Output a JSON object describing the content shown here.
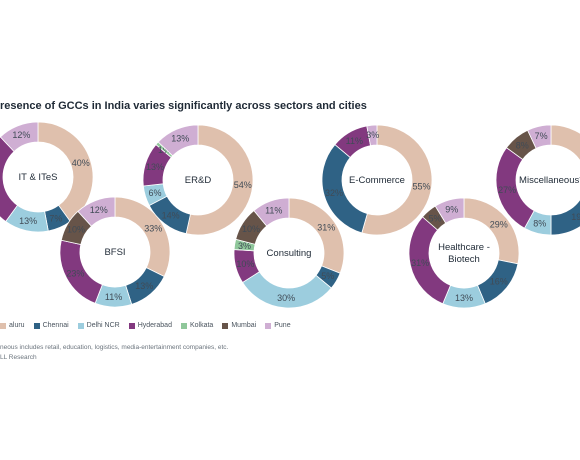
{
  "title": "resence of GCCs in India varies significantly across sectors and cities",
  "colors": {
    "Bengaluru": "#dfc0ad",
    "Chennai": "#2f6285",
    "Delhi NCR": "#9ccdde",
    "Hyderabad": "#82397f",
    "Kolkata": "#8fc79a",
    "Mumbai": "#675449",
    "Pune": "#cfaed3"
  },
  "legend": {
    "items": [
      {
        "label": "aluru",
        "key": "Bengaluru"
      },
      {
        "label": "Chennai",
        "key": "Chennai"
      },
      {
        "label": "Delhi NCR",
        "key": "Delhi NCR"
      },
      {
        "label": "Hyderabad",
        "key": "Hyderabad"
      },
      {
        "label": "Kolkata",
        "key": "Kolkata"
      },
      {
        "label": "Mumbai",
        "key": "Mumbai"
      },
      {
        "label": "Pune",
        "key": "Pune"
      }
    ]
  },
  "footnote": "neous includes retail, education, logistics, media-entertainment companies, etc.",
  "source": "LL Research",
  "chart_data": [
    {
      "type": "pie",
      "title": "IT & ITeS",
      "slices": [
        {
          "city": "Bengaluru",
          "value": 40,
          "label": "40%"
        },
        {
          "city": "Chennai",
          "value": 7,
          "label": "7%"
        },
        {
          "city": "Delhi NCR",
          "value": 13,
          "label": "13%"
        },
        {
          "city": "Hyderabad",
          "value": 28,
          "label": ""
        },
        {
          "city": "Pune",
          "value": 12,
          "label": "12%"
        }
      ]
    },
    {
      "type": "pie",
      "title": "BFSI",
      "slices": [
        {
          "city": "Bengaluru",
          "value": 33,
          "label": "33%"
        },
        {
          "city": "Chennai",
          "value": 13,
          "label": "13%"
        },
        {
          "city": "Delhi NCR",
          "value": 11,
          "label": "11%"
        },
        {
          "city": "Hyderabad",
          "value": 23,
          "label": "23%"
        },
        {
          "city": "Mumbai",
          "value": 10,
          "label": "10%"
        },
        {
          "city": "Pune",
          "value": 12,
          "label": "12%"
        }
      ]
    },
    {
      "type": "pie",
      "title": "ER&D",
      "slices": [
        {
          "city": "Bengaluru",
          "value": 54,
          "label": "54%"
        },
        {
          "city": "Chennai",
          "value": 14,
          "label": "14%"
        },
        {
          "city": "Delhi NCR",
          "value": 6,
          "label": "6%"
        },
        {
          "city": "Hyderabad",
          "value": 13,
          "label": "13%"
        },
        {
          "city": "Kolkata",
          "value": 1,
          "label": "1%"
        },
        {
          "city": "Pune",
          "value": 13,
          "label": "13%"
        }
      ]
    },
    {
      "type": "pie",
      "title": "Consulting",
      "slices": [
        {
          "city": "Bengaluru",
          "value": 31,
          "label": "31%"
        },
        {
          "city": "Chennai",
          "value": 5,
          "label": "5%"
        },
        {
          "city": "Delhi NCR",
          "value": 30,
          "label": "30%"
        },
        {
          "city": "Hyderabad",
          "value": 10,
          "label": "10%"
        },
        {
          "city": "Kolkata",
          "value": 3,
          "label": "3%"
        },
        {
          "city": "Mumbai",
          "value": 10,
          "label": "10%"
        },
        {
          "city": "Pune",
          "value": 11,
          "label": "11%"
        }
      ]
    },
    {
      "type": "pie",
      "title": "E-Commerce",
      "slices": [
        {
          "city": "Bengaluru",
          "value": 55,
          "label": "55%"
        },
        {
          "city": "Chennai",
          "value": 32,
          "label": "32%"
        },
        {
          "city": "Hyderabad",
          "value": 11,
          "label": "11%"
        },
        {
          "city": "Pune",
          "value": 3,
          "label": "3%"
        }
      ]
    },
    {
      "type": "pie",
      "title": "Healthcare -\nBiotech",
      "slices": [
        {
          "city": "Bengaluru",
          "value": 29,
          "label": "29%"
        },
        {
          "city": "Chennai",
          "value": 16,
          "label": "16%"
        },
        {
          "city": "Delhi NCR",
          "value": 13,
          "label": "13%"
        },
        {
          "city": "Hyderabad",
          "value": 31,
          "label": "31%"
        },
        {
          "city": "Mumbai",
          "value": 5,
          "label": "5%"
        },
        {
          "city": "Pune",
          "value": 9,
          "label": "9%"
        }
      ]
    },
    {
      "type": "pie",
      "title": "Miscellaneous*",
      "slices": [
        {
          "city": "Bengaluru",
          "value": 31,
          "label": ""
        },
        {
          "city": "Chennai",
          "value": 19,
          "label": "19"
        },
        {
          "city": "Delhi NCR",
          "value": 8,
          "label": "8%"
        },
        {
          "city": "Hyderabad",
          "value": 27,
          "label": "27%"
        },
        {
          "city": "Mumbai",
          "value": 8,
          "label": "8%"
        },
        {
          "city": "Pune",
          "value": 7,
          "label": "7%"
        }
      ]
    }
  ]
}
